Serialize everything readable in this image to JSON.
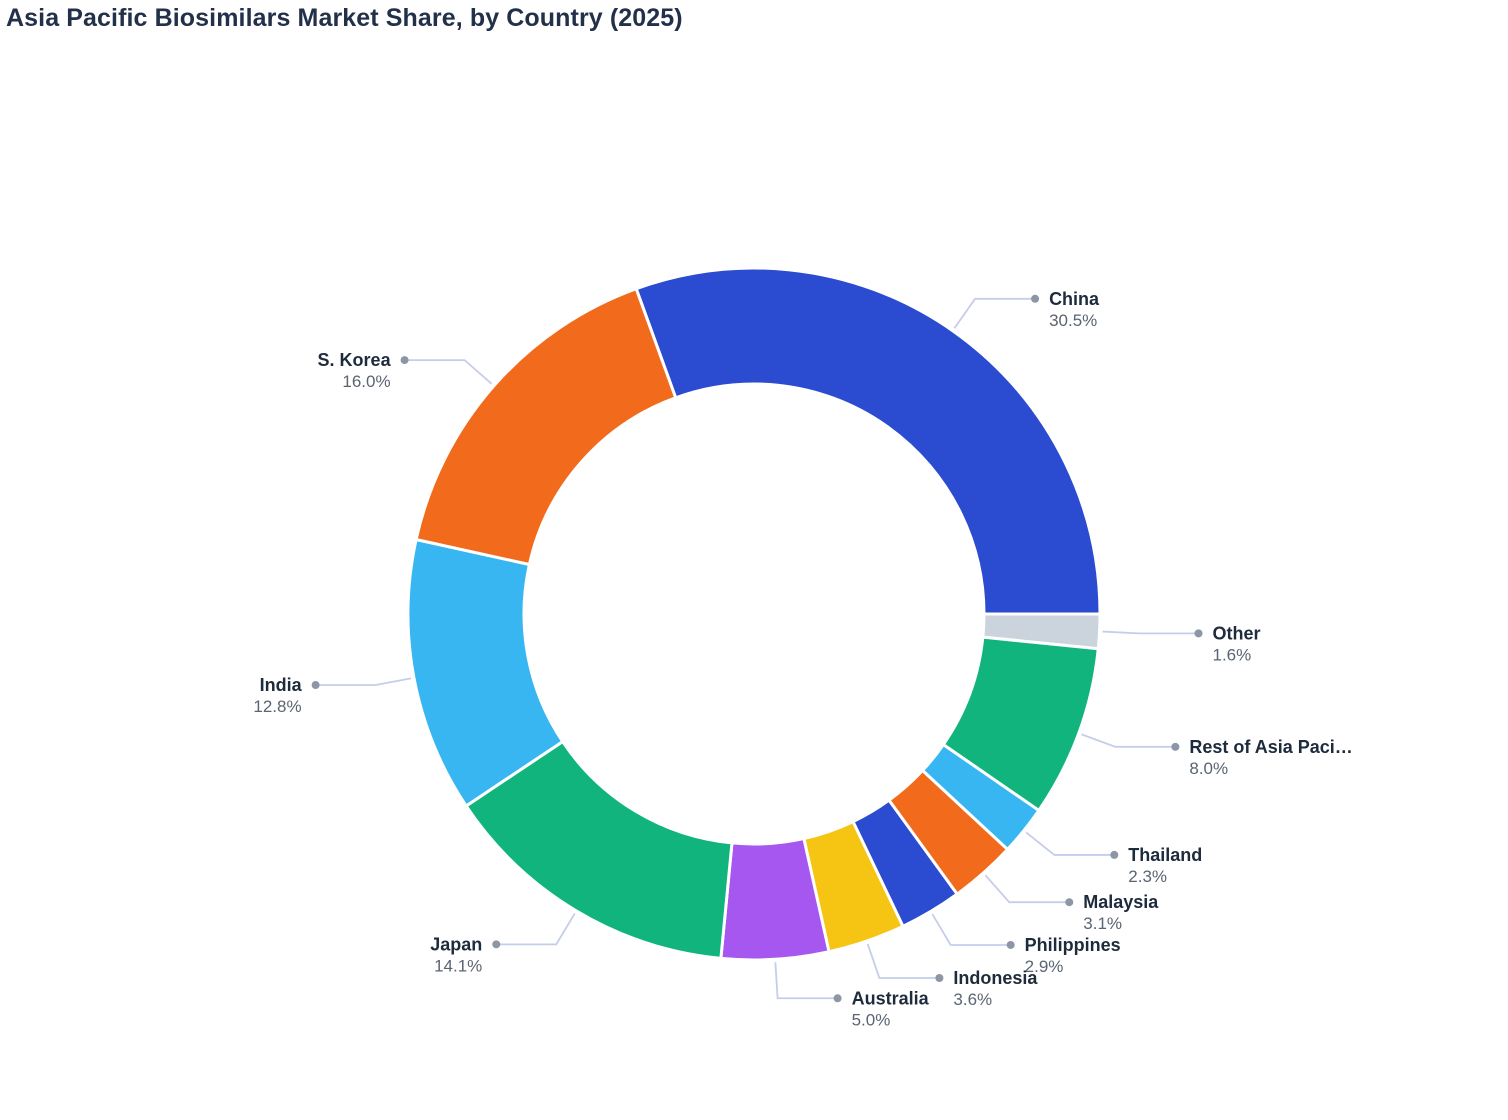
{
  "title": "Asia Pacific Biosimilars Market Share, by Country (2025)",
  "chart_data": {
    "type": "pie",
    "subtype": "donut",
    "title": "Asia Pacific Biosimilars Market Share, by Country (2025)",
    "legend": "none",
    "label_style": "outside-callout",
    "hole_ratio": 0.66,
    "order": "clockwise, first slice (China) ends at 3 o'clock",
    "slices": [
      {
        "label": "China",
        "value": 30.5,
        "pct_label": "30.5%",
        "color": "#2b4bd0"
      },
      {
        "label": "Other",
        "value": 1.6,
        "pct_label": "1.6%",
        "color": "#cbd3dc"
      },
      {
        "label": "Rest of Asia Paci…",
        "value": 8.0,
        "pct_label": "8.0%",
        "color": "#12b47e"
      },
      {
        "label": "Thailand",
        "value": 2.3,
        "pct_label": "2.3%",
        "color": "#38b6f2"
      },
      {
        "label": "Malaysia",
        "value": 3.1,
        "pct_label": "3.1%",
        "color": "#f26a1c"
      },
      {
        "label": "Philippines",
        "value": 2.9,
        "pct_label": "2.9%",
        "color": "#2b4bd0"
      },
      {
        "label": "Indonesia",
        "value": 3.6,
        "pct_label": "3.6%",
        "color": "#f6c514"
      },
      {
        "label": "Australia",
        "value": 5.0,
        "pct_label": "5.0%",
        "color": "#a657f0"
      },
      {
        "label": "Japan",
        "value": 14.1,
        "pct_label": "14.1%",
        "color": "#12b47e"
      },
      {
        "label": "India",
        "value": 12.8,
        "pct_label": "12.8%",
        "color": "#38b6f2"
      },
      {
        "label": "S. Korea",
        "value": 16.0,
        "pct_label": "16.0%",
        "color": "#f26a1c"
      }
    ],
    "colors": {
      "leader_line": "#c5cdeb",
      "leader_dot": "#8d96a6",
      "label_text": "#1e2b3c",
      "pct_text": "#5a6472",
      "title_text": "#22304a"
    }
  }
}
